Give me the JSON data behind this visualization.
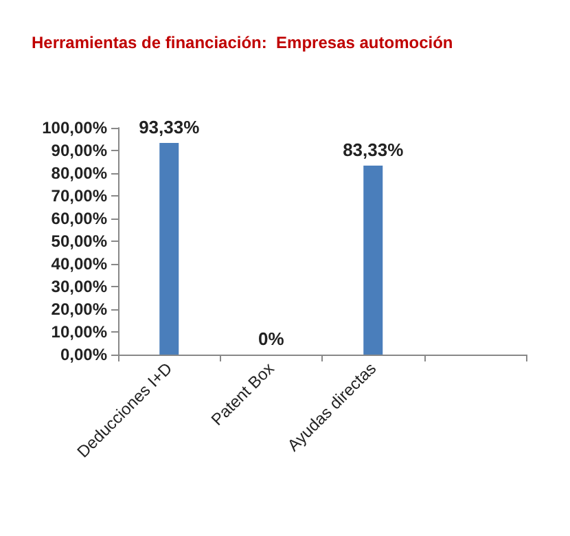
{
  "chart_data": {
    "type": "bar",
    "title": "Herramientas de financiación:  Empresas automoción",
    "categories": [
      "Deducciones I+D",
      "Patent Box",
      "Ayudas directas",
      null
    ],
    "values": [
      93.33,
      0,
      83.33,
      null
    ],
    "value_labels": [
      "93,33%",
      "0%",
      "83,33%",
      null
    ],
    "color": "#4a7ebb",
    "ylim": [
      0,
      100
    ],
    "yticks": [
      {
        "value": 0,
        "label": "0,00%"
      },
      {
        "value": 10,
        "label": "10,00%"
      },
      {
        "value": 20,
        "label": "20,00%"
      },
      {
        "value": 30,
        "label": "30,00%"
      },
      {
        "value": 40,
        "label": "40,00%"
      },
      {
        "value": 50,
        "label": "50,00%"
      },
      {
        "value": 60,
        "label": "60,00%"
      },
      {
        "value": 70,
        "label": "70,00%"
      },
      {
        "value": 80,
        "label": "80,00%"
      },
      {
        "value": 90,
        "label": "90,00%"
      },
      {
        "value": 100,
        "label": "100,00%"
      }
    ],
    "grid": false
  }
}
